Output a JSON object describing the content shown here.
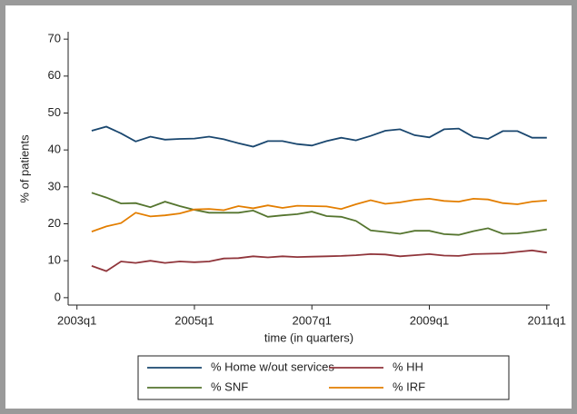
{
  "chart_data": {
    "type": "line",
    "y_label": "% of patients",
    "x_label": "time (in quarters)",
    "x": [
      2003.25,
      2003.5,
      2003.75,
      2004,
      2004.25,
      2004.5,
      2004.75,
      2005,
      2005.25,
      2005.5,
      2005.75,
      2006,
      2006.25,
      2006.5,
      2006.75,
      2007,
      2007.25,
      2007.5,
      2007.75,
      2008,
      2008.25,
      2008.5,
      2008.75,
      2009,
      2009.25,
      2009.5,
      2009.75,
      2010,
      2010.25,
      2010.5,
      2010.75,
      2011
    ],
    "series": [
      {
        "name": "% Home w/out services",
        "color": "#1a476f",
        "values": [
          45.2,
          46.3,
          44.5,
          42.3,
          43.6,
          42.8,
          43.0,
          43.1,
          43.6,
          42.9,
          41.8,
          40.9,
          42.4,
          42.4,
          41.6,
          41.2,
          42.4,
          43.3,
          42.6,
          43.8,
          45.2,
          45.6,
          44.0,
          43.4,
          45.6,
          45.8,
          43.5,
          43.0,
          45.1,
          45.1,
          43.3,
          43.3
        ]
      },
      {
        "name": "% HH",
        "color": "#90353b",
        "values": [
          8.6,
          7.2,
          9.8,
          9.4,
          10.0,
          9.4,
          9.8,
          9.6,
          9.8,
          10.6,
          10.7,
          11.2,
          10.9,
          11.2,
          11.0,
          11.1,
          11.2,
          11.3,
          11.5,
          11.8,
          11.7,
          11.2,
          11.5,
          11.8,
          11.4,
          11.3,
          11.8,
          11.9,
          12.0,
          12.4,
          12.8,
          12.2
        ]
      },
      {
        "name": "% SNF",
        "color": "#55752f",
        "values": [
          28.4,
          27.1,
          25.5,
          25.6,
          24.5,
          26.0,
          24.8,
          23.8,
          23.0,
          23.0,
          23.0,
          23.6,
          21.9,
          22.3,
          22.6,
          23.3,
          22.1,
          21.9,
          20.8,
          18.2,
          17.8,
          17.3,
          18.1,
          18.1,
          17.2,
          17.0,
          18.0,
          18.8,
          17.3,
          17.4,
          17.9,
          18.5
        ]
      },
      {
        "name": "% IRF",
        "color": "#e37e00",
        "values": [
          17.9,
          19.3,
          20.2,
          23.0,
          22.0,
          22.3,
          22.8,
          23.9,
          24.0,
          23.7,
          24.8,
          24.2,
          25.0,
          24.3,
          24.9,
          24.8,
          24.7,
          24.0,
          25.3,
          26.4,
          25.4,
          25.8,
          26.5,
          26.8,
          26.2,
          26.0,
          26.8,
          26.6,
          25.6,
          25.3,
          26.0,
          26.3
        ]
      }
    ],
    "xlim": [
      2002.85,
      2011.05
    ],
    "xticks": [
      {
        "value": 2003,
        "label": "2003q1"
      },
      {
        "value": 2005,
        "label": "2005q1"
      },
      {
        "value": 2007,
        "label": "2007q1"
      },
      {
        "value": 2009,
        "label": "2009q1"
      },
      {
        "value": 2011,
        "label": "2011q1"
      }
    ],
    "ylim": [
      -2,
      72
    ],
    "yticks": [
      0,
      10,
      20,
      30,
      40,
      50,
      60,
      70
    ],
    "grid": false
  }
}
